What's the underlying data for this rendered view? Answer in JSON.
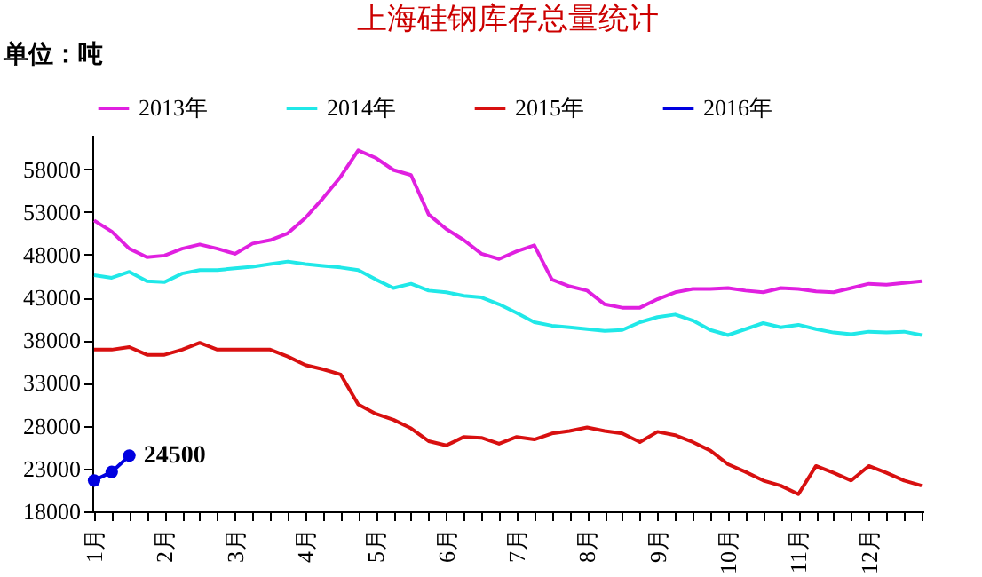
{
  "chart_data": {
    "type": "line",
    "title": "上海硅钢库存总量统计",
    "annotations": [
      "单位：吨"
    ],
    "categories": [
      "1月",
      null,
      null,
      null,
      "2月",
      null,
      null,
      null,
      "3月",
      null,
      null,
      null,
      "4月",
      null,
      null,
      null,
      "5月",
      null,
      null,
      null,
      "6月",
      null,
      null,
      null,
      "7月",
      null,
      null,
      null,
      "8月",
      null,
      null,
      null,
      "9月",
      null,
      null,
      null,
      "10月",
      null,
      null,
      null,
      "11月",
      null,
      null,
      null,
      "12月",
      null,
      null,
      null
    ],
    "series": [
      {
        "name": "2013年",
        "color": "#e020e0",
        "values": [
          52000,
          50700,
          48700,
          47700,
          47900,
          48700,
          49200,
          48700,
          48100,
          49300,
          49700,
          50500,
          52300,
          54600,
          57100,
          60200,
          59300,
          57900,
          57300,
          52700,
          51000,
          49700,
          48100,
          47500,
          48400,
          49100,
          45100,
          44300,
          43800,
          42200,
          41800,
          41800,
          42800,
          43600,
          44000,
          44000,
          44100,
          43800,
          43600,
          44100,
          44000,
          43700,
          43600,
          44100,
          44600,
          44500,
          44700,
          44900
        ]
      },
      {
        "name": "2014年",
        "color": "#20e8e8",
        "values": [
          45600,
          45300,
          46000,
          44900,
          44800,
          45800,
          46200,
          46200,
          46400,
          46600,
          46900,
          47200,
          46900,
          46700,
          46500,
          46200,
          45100,
          44100,
          44600,
          43800,
          43600,
          43200,
          43000,
          42200,
          41200,
          40100,
          39700,
          39500,
          39300,
          39100,
          39200,
          40100,
          40700,
          41000,
          40300,
          39200,
          38600,
          39300,
          40000,
          39500,
          39800,
          39300,
          38900,
          38700,
          39000,
          38900,
          39000,
          38600
        ]
      },
      {
        "name": "2015年",
        "color": "#d81010",
        "values": [
          36900,
          36900,
          37200,
          36300,
          36300,
          36900,
          37700,
          36900,
          36900,
          36900,
          36900,
          36100,
          35100,
          34600,
          34000,
          30500,
          29400,
          28700,
          27700,
          26200,
          25700,
          26700,
          26600,
          25900,
          26700,
          26400,
          27100,
          27400,
          27800,
          27400,
          27100,
          26100,
          27300,
          26900,
          26100,
          25100,
          23500,
          22600,
          21600,
          21000,
          20000,
          23300,
          22500,
          21600,
          23300,
          22500,
          21600,
          21000
        ]
      },
      {
        "name": "2016年",
        "color": "#0000e0",
        "marker": "circle",
        "values": [
          21600,
          22600,
          24500,
          null,
          null,
          null,
          null,
          null,
          null,
          null,
          null,
          null,
          null,
          null,
          null,
          null,
          null,
          null,
          null,
          null,
          null,
          null,
          null,
          null,
          null,
          null,
          null,
          null,
          null,
          null,
          null,
          null,
          null,
          null,
          null,
          null,
          null,
          null,
          null,
          null,
          null,
          null,
          null,
          null,
          null,
          null,
          null,
          null
        ],
        "value_labels": [
          null,
          null,
          "24500",
          null,
          null,
          null,
          null,
          null,
          null,
          null,
          null,
          null,
          null,
          null,
          null,
          null,
          null,
          null,
          null,
          null,
          null,
          null,
          null,
          null,
          null,
          null,
          null,
          null,
          null,
          null,
          null,
          null,
          null,
          null,
          null,
          null,
          null,
          null,
          null,
          null,
          null,
          null,
          null,
          null,
          null,
          null,
          null,
          null
        ]
      }
    ],
    "ylim": [
      18000,
      62000
    ],
    "yticks": [
      18000,
      23000,
      28000,
      33000,
      38000,
      43000,
      48000,
      53000,
      58000
    ],
    "grid": false,
    "legend": "top",
    "line_style": "solid"
  }
}
